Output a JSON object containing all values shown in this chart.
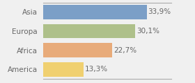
{
  "categories": [
    "Asia",
    "Europa",
    "Africa",
    "America"
  ],
  "values": [
    33.9,
    30.1,
    22.7,
    13.3
  ],
  "labels": [
    "33,9%",
    "30,1%",
    "22,7%",
    "13,3%"
  ],
  "bar_colors": [
    "#7b9fc7",
    "#aec08a",
    "#e8ab7a",
    "#f0d070"
  ],
  "xlim": [
    0,
    42
  ],
  "background_color": "#f0f0f0",
  "bar_height": 0.75,
  "label_fontsize": 7.5,
  "tick_fontsize": 7.5,
  "label_color": "#666666",
  "tick_color": "#666666"
}
